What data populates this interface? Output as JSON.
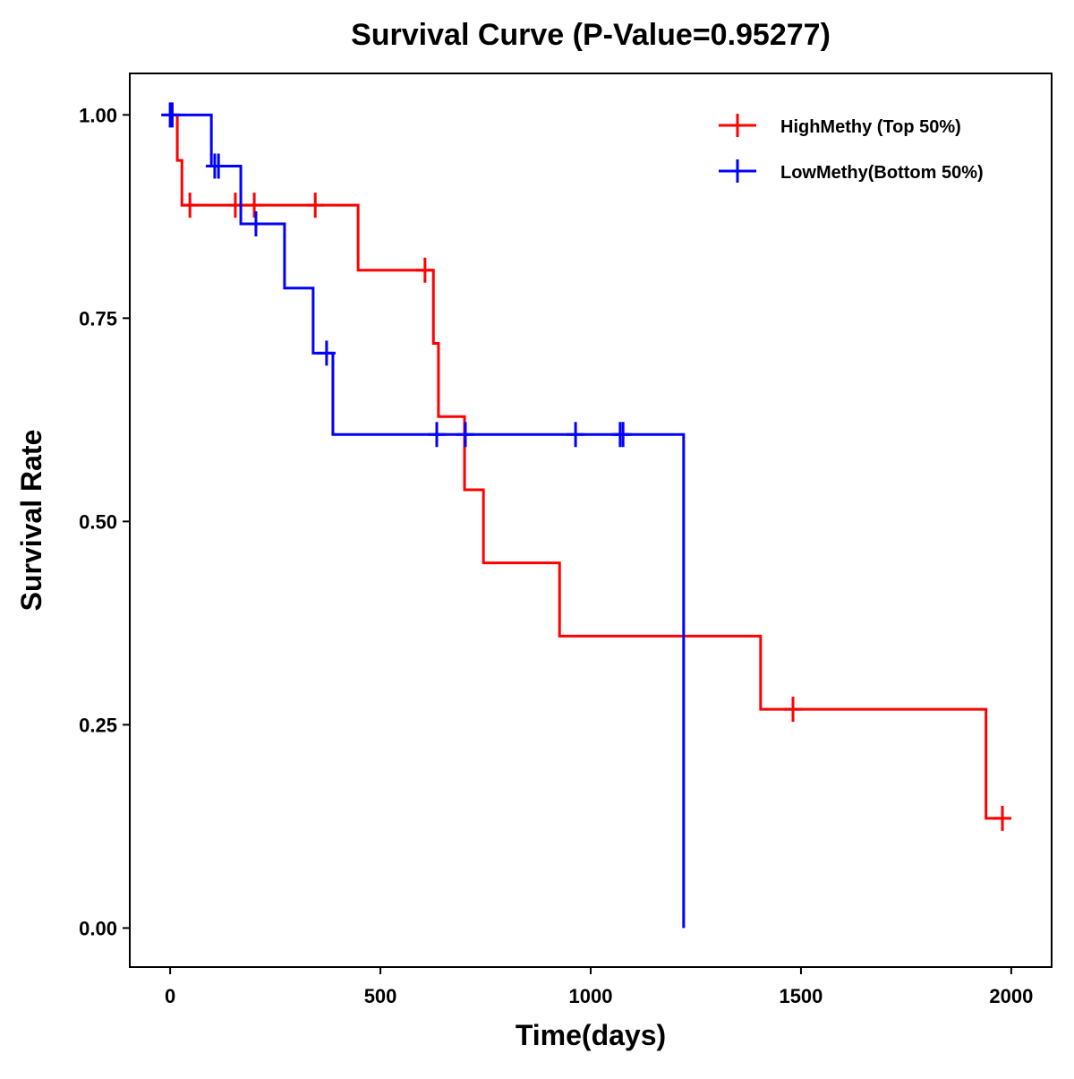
{
  "chart_data": {
    "type": "line",
    "title": "Survival Curve (P-Value=0.95277)",
    "xlabel": "Time(days)",
    "ylabel": "Survival Rate",
    "xlim": [
      -96,
      2096
    ],
    "ylim": [
      -0.048,
      1.051
    ],
    "xticks": [
      "0",
      "500",
      "1000",
      "1500",
      "2000"
    ],
    "xtick_values": [
      0,
      500,
      1000,
      1500,
      2000
    ],
    "yticks": [
      "0.00",
      "0.25",
      "0.50",
      "0.75",
      "1.00"
    ],
    "ytick_values": [
      0,
      0.25,
      0.5,
      0.75,
      1.0
    ],
    "grid": false,
    "legend_position": "top-right",
    "series": [
      {
        "name": "HighMethy (Top 50%)",
        "color": "#ff0000",
        "steps": [
          [
            0,
            1.0
          ],
          [
            17,
            0.944
          ],
          [
            28,
            0.889
          ],
          [
            447,
            0.809
          ],
          [
            626,
            0.719
          ],
          [
            638,
            0.629
          ],
          [
            700,
            0.539
          ],
          [
            745,
            0.449
          ],
          [
            926,
            0.359
          ],
          [
            1404,
            0.269
          ],
          [
            1940,
            0.135
          ]
        ],
        "end": 2000,
        "censored": [
          [
            47,
            0.889
          ],
          [
            155,
            0.889
          ],
          [
            200,
            0.889
          ],
          [
            345,
            0.889
          ],
          [
            606,
            0.809
          ],
          [
            1481,
            0.269
          ],
          [
            1979,
            0.135
          ]
        ]
      },
      {
        "name": "LowMethy(Bottom 50%)",
        "color": "#0000ff",
        "steps": [
          [
            0,
            1.0
          ],
          [
            98,
            0.937
          ],
          [
            168,
            0.866
          ],
          [
            272,
            0.787
          ],
          [
            340,
            0.707
          ],
          [
            387,
            0.607
          ],
          [
            1221,
            0.0
          ]
        ],
        "end": 1221,
        "censored": [
          [
            0,
            1.0
          ],
          [
            5,
            1.0
          ],
          [
            106,
            0.937
          ],
          [
            115,
            0.937
          ],
          [
            204,
            0.866
          ],
          [
            372,
            0.707
          ],
          [
            634,
            0.607
          ],
          [
            702,
            0.607
          ],
          [
            964,
            0.607
          ],
          [
            1070,
            0.607
          ],
          [
            1077,
            0.607
          ]
        ]
      }
    ]
  }
}
